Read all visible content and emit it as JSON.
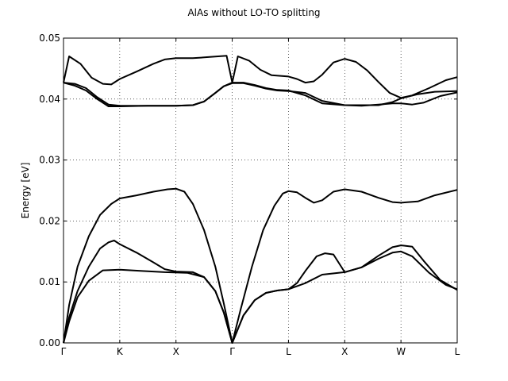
{
  "chart_data": {
    "type": "line",
    "title": "AlAs without LO-TO splitting",
    "xlabel": "",
    "ylabel": "Energy [eV]",
    "ylim": [
      0.0,
      0.05
    ],
    "yticks": [
      "0.00",
      "0.01",
      "0.02",
      "0.03",
      "0.04",
      "0.05"
    ],
    "xlim": [
      0,
      7
    ],
    "xticks": [
      {
        "label": "Γ",
        "x": 0
      },
      {
        "label": "K",
        "x": 1
      },
      {
        "label": "X",
        "x": 2
      },
      {
        "label": "Γ",
        "x": 3
      },
      {
        "label": "L",
        "x": 4
      },
      {
        "label": "X",
        "x": 5
      },
      {
        "label": "W",
        "x": 6
      },
      {
        "label": "L",
        "x": 7
      }
    ],
    "grid": true,
    "series": [
      {
        "values": [
          [
            0,
            0
          ],
          [
            0.1,
            0.0035
          ],
          [
            0.25,
            0.0075
          ],
          [
            0.45,
            0.0102
          ],
          [
            0.7,
            0.0119
          ],
          [
            1,
            0.012
          ],
          [
            1.4,
            0.0118
          ],
          [
            1.8,
            0.0116
          ],
          [
            2.2,
            0.0115
          ],
          [
            2.5,
            0.0108
          ],
          [
            2.7,
            0.0085
          ],
          [
            2.85,
            0.005
          ],
          [
            3,
            0
          ],
          [
            3.2,
            0.0045
          ],
          [
            3.4,
            0.007
          ],
          [
            3.6,
            0.0082
          ],
          [
            3.8,
            0.0086
          ],
          [
            4,
            0.0088
          ],
          [
            4.3,
            0.0098
          ],
          [
            4.6,
            0.0112
          ],
          [
            5,
            0.0116
          ],
          [
            5.3,
            0.0124
          ],
          [
            5.6,
            0.0138
          ],
          [
            5.85,
            0.0148
          ],
          [
            6,
            0.015
          ],
          [
            6.2,
            0.0142
          ],
          [
            6.5,
            0.0115
          ],
          [
            6.8,
            0.0095
          ],
          [
            7,
            0.0088
          ]
        ]
      },
      {
        "values": [
          [
            0,
            0
          ],
          [
            0.1,
            0.0042
          ],
          [
            0.25,
            0.0085
          ],
          [
            0.45,
            0.0125
          ],
          [
            0.65,
            0.0155
          ],
          [
            0.8,
            0.0165
          ],
          [
            0.9,
            0.0168
          ],
          [
            1,
            0.0162
          ],
          [
            1.3,
            0.0148
          ],
          [
            1.6,
            0.0132
          ],
          [
            1.8,
            0.0121
          ],
          [
            2,
            0.0117
          ],
          [
            2.3,
            0.0116
          ],
          [
            2.5,
            0.0108
          ],
          [
            2.7,
            0.0085
          ],
          [
            2.85,
            0.005
          ],
          [
            3,
            0
          ],
          [
            3.2,
            0.0045
          ],
          [
            3.4,
            0.007
          ],
          [
            3.6,
            0.0082
          ],
          [
            3.8,
            0.0086
          ],
          [
            4,
            0.0088
          ],
          [
            4.15,
            0.0098
          ],
          [
            4.3,
            0.0118
          ],
          [
            4.5,
            0.0142
          ],
          [
            4.65,
            0.0147
          ],
          [
            4.8,
            0.0145
          ],
          [
            5,
            0.0116
          ],
          [
            5.3,
            0.0124
          ],
          [
            5.6,
            0.0143
          ],
          [
            5.85,
            0.0157
          ],
          [
            6,
            0.016
          ],
          [
            6.2,
            0.0158
          ],
          [
            6.4,
            0.0135
          ],
          [
            6.7,
            0.0103
          ],
          [
            7,
            0.0087
          ]
        ]
      },
      {
        "values": [
          [
            0,
            0
          ],
          [
            0.1,
            0.0062
          ],
          [
            0.25,
            0.0125
          ],
          [
            0.45,
            0.0175
          ],
          [
            0.65,
            0.021
          ],
          [
            0.85,
            0.0228
          ],
          [
            1,
            0.0237
          ],
          [
            1.3,
            0.0242
          ],
          [
            1.6,
            0.0248
          ],
          [
            1.85,
            0.0252
          ],
          [
            2,
            0.0253
          ],
          [
            2.15,
            0.0248
          ],
          [
            2.3,
            0.0228
          ],
          [
            2.5,
            0.0185
          ],
          [
            2.7,
            0.0125
          ],
          [
            2.85,
            0.0065
          ],
          [
            3,
            0
          ],
          [
            3.15,
            0.0055
          ],
          [
            3.35,
            0.0125
          ],
          [
            3.55,
            0.0185
          ],
          [
            3.75,
            0.0225
          ],
          [
            3.9,
            0.0245
          ],
          [
            4,
            0.0249
          ],
          [
            4.15,
            0.0247
          ],
          [
            4.3,
            0.0238
          ],
          [
            4.45,
            0.023
          ],
          [
            4.6,
            0.0234
          ],
          [
            4.8,
            0.0248
          ],
          [
            5,
            0.0252
          ],
          [
            5.3,
            0.0248
          ],
          [
            5.6,
            0.0238
          ],
          [
            5.85,
            0.0231
          ],
          [
            6,
            0.023
          ],
          [
            6.3,
            0.0232
          ],
          [
            6.6,
            0.0242
          ],
          [
            7,
            0.0251
          ]
        ]
      },
      {
        "values": [
          [
            0,
            0.0427
          ],
          [
            0.2,
            0.0425
          ],
          [
            0.4,
            0.0418
          ],
          [
            0.6,
            0.0403
          ],
          [
            0.8,
            0.0391
          ],
          [
            1,
            0.0389
          ],
          [
            1.5,
            0.0389
          ],
          [
            2,
            0.0389
          ],
          [
            2.3,
            0.039
          ],
          [
            2.5,
            0.0396
          ],
          [
            2.7,
            0.041
          ],
          [
            2.85,
            0.0421
          ],
          [
            3,
            0.0426
          ],
          [
            3.2,
            0.0426
          ],
          [
            3.4,
            0.0422
          ],
          [
            3.6,
            0.0417
          ],
          [
            3.8,
            0.0414
          ],
          [
            4,
            0.0413
          ],
          [
            4.3,
            0.041
          ],
          [
            4.6,
            0.0397
          ],
          [
            5,
            0.039
          ],
          [
            5.3,
            0.039
          ],
          [
            5.6,
            0.039
          ],
          [
            5.85,
            0.0395
          ],
          [
            6,
            0.0401
          ],
          [
            6.3,
            0.0408
          ],
          [
            6.6,
            0.0412
          ],
          [
            7,
            0.0413
          ]
        ]
      },
      {
        "values": [
          [
            0,
            0.0427
          ],
          [
            0.2,
            0.0422
          ],
          [
            0.4,
            0.0414
          ],
          [
            0.6,
            0.04
          ],
          [
            0.8,
            0.0388
          ],
          [
            1,
            0.0388
          ],
          [
            1.5,
            0.0389
          ],
          [
            2,
            0.0389
          ],
          [
            2.3,
            0.039
          ],
          [
            2.5,
            0.0396
          ],
          [
            2.7,
            0.041
          ],
          [
            2.85,
            0.0421
          ],
          [
            3,
            0.0427
          ],
          [
            3.2,
            0.0427
          ],
          [
            3.4,
            0.0423
          ],
          [
            3.6,
            0.0418
          ],
          [
            3.8,
            0.0415
          ],
          [
            4,
            0.0414
          ],
          [
            4.3,
            0.0406
          ],
          [
            4.6,
            0.0393
          ],
          [
            5,
            0.039
          ],
          [
            5.3,
            0.0389
          ],
          [
            5.6,
            0.0391
          ],
          [
            5.85,
            0.0393
          ],
          [
            6,
            0.0393
          ],
          [
            6.2,
            0.0391
          ],
          [
            6.4,
            0.0394
          ],
          [
            6.7,
            0.0405
          ],
          [
            7,
            0.0411
          ]
        ]
      },
      {
        "values": [
          [
            0,
            0.0427
          ],
          [
            0.1,
            0.047
          ],
          [
            0.3,
            0.0458
          ],
          [
            0.5,
            0.0435
          ],
          [
            0.7,
            0.0425
          ],
          [
            0.85,
            0.0424
          ],
          [
            1,
            0.0433
          ],
          [
            1.3,
            0.0445
          ],
          [
            1.6,
            0.0458
          ],
          [
            1.8,
            0.0465
          ],
          [
            2,
            0.0467
          ],
          [
            2.3,
            0.0467
          ],
          [
            2.6,
            0.0469
          ],
          [
            2.9,
            0.0471
          ],
          [
            3,
            0.0427
          ],
          [
            3.1,
            0.047
          ],
          [
            3.3,
            0.0463
          ],
          [
            3.5,
            0.0448
          ],
          [
            3.7,
            0.0439
          ],
          [
            4,
            0.0437
          ],
          [
            4.15,
            0.0433
          ],
          [
            4.3,
            0.0427
          ],
          [
            4.45,
            0.0429
          ],
          [
            4.6,
            0.044
          ],
          [
            4.8,
            0.046
          ],
          [
            5,
            0.0466
          ],
          [
            5.2,
            0.0461
          ],
          [
            5.4,
            0.0447
          ],
          [
            5.6,
            0.0428
          ],
          [
            5.8,
            0.041
          ],
          [
            6,
            0.0402
          ],
          [
            6.2,
            0.0406
          ],
          [
            6.5,
            0.0418
          ],
          [
            6.8,
            0.0431
          ],
          [
            7,
            0.0436
          ]
        ]
      }
    ]
  }
}
